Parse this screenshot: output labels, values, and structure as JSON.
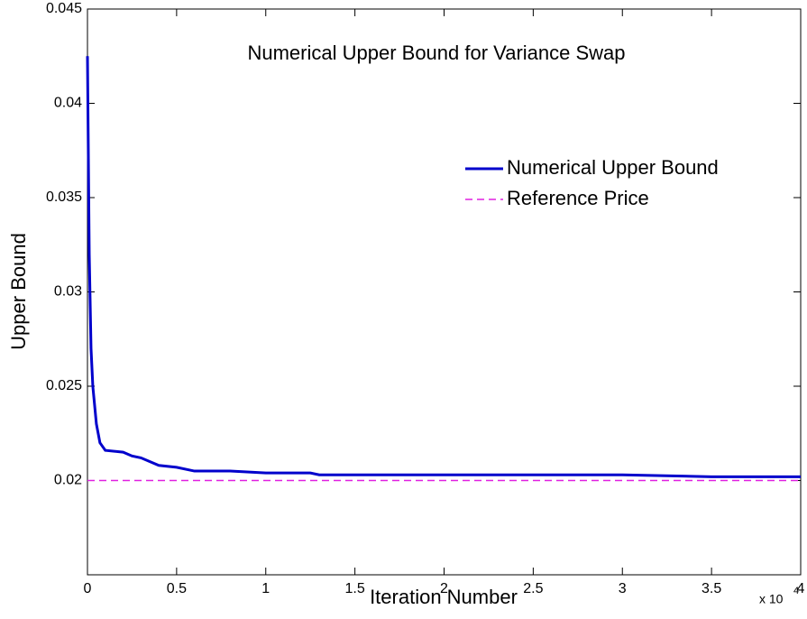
{
  "chart_data": {
    "type": "line",
    "title": "Numerical Upper Bound for Variance Swap",
    "x_label": "Iteration Number",
    "y_label": "Upper Bound",
    "x_multiplier": {
      "base": "x 10",
      "exponent": "4"
    },
    "xlim": [
      0,
      4
    ],
    "ylim": [
      0.015,
      0.045
    ],
    "xticks": [
      0,
      0.5,
      1,
      1.5,
      2,
      2.5,
      3,
      3.5,
      4
    ],
    "yticks": [
      0.02,
      0.025,
      0.03,
      0.035,
      0.04,
      0.045
    ],
    "legend_position": "upper-right",
    "series": [
      {
        "name": "Numerical Upper Bound",
        "color": "#0000cc",
        "style": "solid",
        "x": [
          0,
          0.01,
          0.02,
          0.03,
          0.05,
          0.07,
          0.1,
          0.2,
          0.25,
          0.3,
          0.4,
          0.5,
          0.6,
          0.8,
          1.0,
          1.25,
          1.3,
          1.7,
          2.0,
          2.5,
          3.0,
          3.5,
          4.0
        ],
        "values": [
          0.0425,
          0.032,
          0.027,
          0.025,
          0.023,
          0.022,
          0.0216,
          0.0215,
          0.0213,
          0.0212,
          0.0208,
          0.0207,
          0.0205,
          0.0205,
          0.0204,
          0.0204,
          0.0203,
          0.0203,
          0.0203,
          0.0203,
          0.0203,
          0.0202,
          0.0202
        ]
      },
      {
        "name": "Reference Price",
        "color": "#e020e0",
        "style": "dashed",
        "x": [
          0,
          4
        ],
        "values": [
          0.02,
          0.02
        ]
      }
    ]
  }
}
